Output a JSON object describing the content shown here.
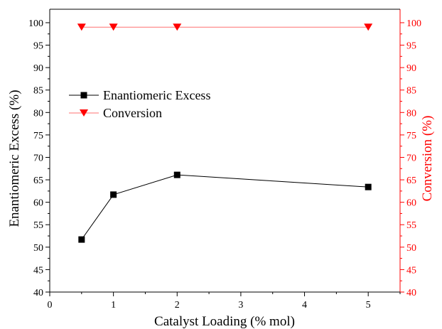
{
  "chart_data": {
    "type": "line",
    "dual_axis": true,
    "xlabel": "Catalyst Loading (% mol)",
    "ylabel_left": "Enantiomeric Excess (%)",
    "ylabel_right": "Conversion (%)",
    "xlim": [
      0,
      5.5
    ],
    "ylim_left": [
      40,
      103
    ],
    "ylim_right": [
      40,
      103
    ],
    "x_ticks": [
      "0",
      "1",
      "2",
      "3",
      "4",
      "5"
    ],
    "y_ticks_left": [
      "40",
      "45",
      "50",
      "55",
      "60",
      "65",
      "70",
      "75",
      "80",
      "85",
      "90",
      "95",
      "100"
    ],
    "y_ticks_right": [
      "40",
      "45",
      "50",
      "55",
      "60",
      "65",
      "70",
      "75",
      "80",
      "85",
      "90",
      "95",
      "100"
    ],
    "grid": false,
    "legend_position": "upper-left",
    "series": [
      {
        "name": "Enantiomeric Excess",
        "axis": "left",
        "marker": "square",
        "color": "#000000",
        "x": [
          0.5,
          1,
          2,
          5
        ],
        "y": [
          51.7,
          61.7,
          66.1,
          63.4
        ]
      },
      {
        "name": "Conversion",
        "axis": "right",
        "marker": "triangle-down",
        "color": "#ff0000",
        "x": [
          0.5,
          1,
          2,
          5
        ],
        "y": [
          99,
          99,
          99,
          99
        ]
      }
    ]
  }
}
